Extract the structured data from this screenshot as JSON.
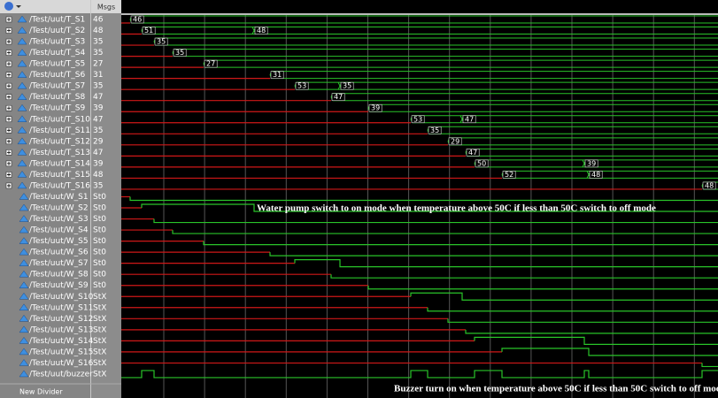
{
  "header": {
    "msgs": "Msgs"
  },
  "signals": [
    {
      "name": "/Test/uut/T_S1",
      "value": "46",
      "wave_labels": [
        "46"
      ]
    },
    {
      "name": "/Test/uut/T_S2",
      "value": "48",
      "wave_labels": [
        "51",
        "48"
      ]
    },
    {
      "name": "/Test/uut/T_S3",
      "value": "35",
      "wave_labels": [
        "35"
      ]
    },
    {
      "name": "/Test/uut/T_S4",
      "value": "35",
      "wave_labels": [
        "35"
      ]
    },
    {
      "name": "/Test/uut/T_S5",
      "value": "27",
      "wave_labels": [
        "27"
      ]
    },
    {
      "name": "/Test/uut/T_S6",
      "value": "31",
      "wave_labels": [
        "31"
      ]
    },
    {
      "name": "/Test/uut/T_S7",
      "value": "35",
      "wave_labels": [
        "53",
        "35"
      ]
    },
    {
      "name": "/Test/uut/T_S8",
      "value": "47",
      "wave_labels": [
        "47"
      ]
    },
    {
      "name": "/Test/uut/T_S9",
      "value": "39",
      "wave_labels": [
        "39"
      ]
    },
    {
      "name": "/Test/uut/T_S10",
      "value": "47",
      "wave_labels": [
        "53",
        "47"
      ]
    },
    {
      "name": "/Test/uut/T_S11",
      "value": "35",
      "wave_labels": [
        "35"
      ]
    },
    {
      "name": "/Test/uut/T_S12",
      "value": "29",
      "wave_labels": [
        "29"
      ]
    },
    {
      "name": "/Test/uut/T_S13",
      "value": "47",
      "wave_labels": [
        "47"
      ]
    },
    {
      "name": "/Test/uut/T_S14",
      "value": "39",
      "wave_labels": [
        "50",
        "39"
      ]
    },
    {
      "name": "/Test/uut/T_S15",
      "value": "48",
      "wave_labels": [
        "52",
        "48"
      ]
    },
    {
      "name": "/Test/uut/T_S16",
      "value": "35",
      "wave_labels": [
        "48"
      ]
    },
    {
      "name": "/Test/uut/W_S1",
      "value": "St0"
    },
    {
      "name": "/Test/uut/W_S2",
      "value": "St0"
    },
    {
      "name": "/Test/uut/W_S3",
      "value": "St0"
    },
    {
      "name": "/Test/uut/W_S4",
      "value": "St0"
    },
    {
      "name": "/Test/uut/W_S5",
      "value": "St0"
    },
    {
      "name": "/Test/uut/W_S6",
      "value": "St0"
    },
    {
      "name": "/Test/uut/W_S7",
      "value": "St0"
    },
    {
      "name": "/Test/uut/W_S8",
      "value": "St0"
    },
    {
      "name": "/Test/uut/W_S9",
      "value": "St0"
    },
    {
      "name": "/Test/uut/W_S10",
      "value": "StX"
    },
    {
      "name": "/Test/uut/W_S11",
      "value": "StX"
    },
    {
      "name": "/Test/uut/W_S12",
      "value": "StX"
    },
    {
      "name": "/Test/uut/W_S13",
      "value": "StX"
    },
    {
      "name": "/Test/uut/W_S14",
      "value": "StX"
    },
    {
      "name": "/Test/uut/W_S15",
      "value": "StX"
    },
    {
      "name": "/Test/uut/W_S16",
      "value": "StX"
    },
    {
      "name": "/Test/uut/buzzer",
      "value": "StX"
    }
  ],
  "divider": "New Divider",
  "annotations": [
    "Water pump switch to on mode when temperature above 50C if less than 50C switch to off mode",
    "Buzzer turn on when temperature above 50C  if less than 50C switch to off mode"
  ]
}
